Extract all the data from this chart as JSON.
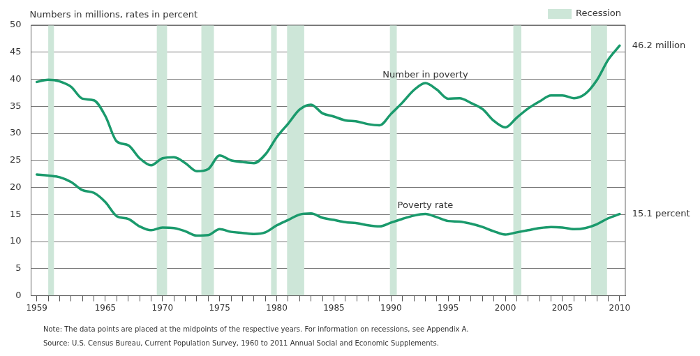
{
  "chart_data": {
    "type": "line",
    "ylabel": "Numbers in millions, rates in percent",
    "x": [
      1959,
      1960,
      1961,
      1962,
      1963,
      1964,
      1965,
      1966,
      1967,
      1968,
      1969,
      1970,
      1971,
      1972,
      1973,
      1974,
      1975,
      1976,
      1977,
      1978,
      1979,
      1980,
      1981,
      1982,
      1983,
      1984,
      1985,
      1986,
      1987,
      1988,
      1989,
      1990,
      1991,
      1992,
      1993,
      1994,
      1995,
      1996,
      1997,
      1998,
      1999,
      2000,
      2001,
      2002,
      2003,
      2004,
      2005,
      2006,
      2007,
      2008,
      2009,
      2010
    ],
    "series": [
      {
        "name": "Number in poverty",
        "color": "#1a9a6c",
        "values": [
          39.5,
          39.9,
          39.6,
          38.6,
          36.4,
          36.1,
          33.2,
          28.5,
          27.8,
          25.4,
          24.1,
          25.4,
          25.6,
          24.5,
          23.0,
          23.4,
          25.9,
          25.0,
          24.7,
          24.5,
          26.1,
          29.3,
          31.8,
          34.4,
          35.3,
          33.7,
          33.1,
          32.4,
          32.2,
          31.7,
          31.5,
          33.6,
          35.7,
          38.0,
          39.3,
          38.1,
          36.4,
          36.5,
          35.6,
          34.5,
          32.3,
          31.1,
          32.9,
          34.6,
          35.9,
          37.0,
          37.0,
          36.5,
          37.3,
          39.8,
          43.6,
          46.2
        ]
      },
      {
        "name": "Poverty rate",
        "color": "#1a9a6c",
        "values": [
          22.4,
          22.2,
          21.9,
          21.0,
          19.5,
          19.0,
          17.3,
          14.7,
          14.2,
          12.8,
          12.1,
          12.6,
          12.5,
          11.9,
          11.1,
          11.2,
          12.3,
          11.8,
          11.6,
          11.4,
          11.7,
          13.0,
          14.0,
          15.0,
          15.2,
          14.4,
          14.0,
          13.6,
          13.4,
          13.0,
          12.8,
          13.5,
          14.2,
          14.8,
          15.1,
          14.5,
          13.8,
          13.7,
          13.3,
          12.7,
          11.9,
          11.3,
          11.7,
          12.1,
          12.5,
          12.7,
          12.6,
          12.3,
          12.5,
          13.2,
          14.3,
          15.1
        ]
      }
    ],
    "xlim": [
      1958.5,
      2010.5
    ],
    "xticks": [
      1959,
      {
        "value": 1960,
        "label": null
      },
      {
        "value": 1961,
        "label": null
      },
      {
        "value": 1962,
        "label": null
      },
      {
        "value": 1963,
        "label": null
      },
      {
        "value": 1964,
        "label": null
      },
      1965,
      {
        "value": 1966,
        "label": null
      },
      {
        "value": 1967,
        "label": null
      },
      {
        "value": 1968,
        "label": null
      },
      {
        "value": 1969,
        "label": null
      },
      1970,
      {
        "value": 1971,
        "label": null
      },
      {
        "value": 1972,
        "label": null
      },
      {
        "value": 1973,
        "label": null
      },
      {
        "value": 1974,
        "label": null
      },
      1975,
      {
        "value": 1976,
        "label": null
      },
      {
        "value": 1977,
        "label": null
      },
      {
        "value": 1978,
        "label": null
      },
      {
        "value": 1979,
        "label": null
      },
      1980,
      {
        "value": 1981,
        "label": null
      },
      {
        "value": 1982,
        "label": null
      },
      {
        "value": 1983,
        "label": null
      },
      {
        "value": 1984,
        "label": null
      },
      1985,
      {
        "value": 1986,
        "label": null
      },
      {
        "value": 1987,
        "label": null
      },
      {
        "value": 1988,
        "label": null
      },
      {
        "value": 1989,
        "label": null
      },
      1990,
      {
        "value": 1991,
        "label": null
      },
      {
        "value": 1992,
        "label": null
      },
      {
        "value": 1993,
        "label": null
      },
      {
        "value": 1994,
        "label": null
      },
      1995,
      {
        "value": 1996,
        "label": null
      },
      {
        "value": 1997,
        "label": null
      },
      {
        "value": 1998,
        "label": null
      },
      {
        "value": 1999,
        "label": null
      },
      2000,
      {
        "value": 2001,
        "label": null
      },
      {
        "value": 2002,
        "label": null
      },
      {
        "value": 2003,
        "label": null
      },
      {
        "value": 2004,
        "label": null
      },
      2005,
      {
        "value": 2006,
        "label": null
      },
      {
        "value": 2007,
        "label": null
      },
      {
        "value": 2008,
        "label": null
      },
      {
        "value": 2009,
        "label": null
      },
      2010
    ],
    "ylim": [
      0,
      50
    ],
    "yticks": [
      0,
      5,
      10,
      15,
      20,
      25,
      30,
      35,
      40,
      45,
      50
    ],
    "grid": "y",
    "legend": "top right",
    "marker": "none",
    "line_style": "solid",
    "bands": [
      {
        "axis": "x",
        "from": 1960.0,
        "to": 1960.5,
        "label": "Recession",
        "color": "#cde6d8"
      },
      {
        "axis": "x",
        "from": 1969.5,
        "to": 1970.4,
        "color": "#cde6d8"
      },
      {
        "axis": "x",
        "from": 1973.4,
        "to": 1974.5,
        "color": "#cde6d8"
      },
      {
        "axis": "x",
        "from": 1979.5,
        "to": 1980.0,
        "color": "#cde6d8"
      },
      {
        "axis": "x",
        "from": 1980.9,
        "to": 1982.4,
        "color": "#cde6d8"
      },
      {
        "axis": "x",
        "from": 1989.9,
        "to": 1990.5,
        "color": "#cde6d8"
      },
      {
        "axis": "x",
        "from": 2000.7,
        "to": 2001.4,
        "color": "#cde6d8"
      },
      {
        "axis": "x",
        "from": 2007.5,
        "to": 2008.9,
        "color": "#cde6d8"
      }
    ],
    "annotations": [
      {
        "text": "46.2 million",
        "x": 2010,
        "y": 46.2
      },
      {
        "text": "15.1 percent",
        "x": 2010,
        "y": 15.1
      },
      "Note:  The data points are placed at the midpoints of the respective years. For information on recessions, see Appendix A.",
      "Source:  U.S. Census Bureau, Current Population Survey, 1960 to 2011 Annual Social and Economic Supplements."
    ]
  }
}
